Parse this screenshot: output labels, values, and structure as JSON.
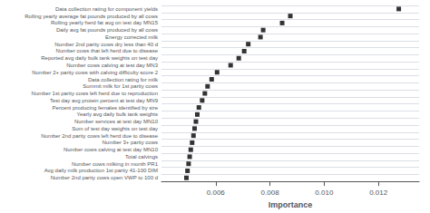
{
  "chart_data": {
    "type": "scatter",
    "orientation": "horizontal",
    "xlabel": "Importance",
    "categories": [
      "Data collection rating for component yields",
      "Rolling yearly average fat pounds produced by all cows",
      "Rolling yearly herd fat avg on test day MN15",
      "Daily avg fat pounds produced by all cows",
      "Energy corrected milk",
      "Number 2nd parity cows dry less than 40 d",
      "Number cows that left herd due to disease",
      "Reported avg daily bulk tank weights on test day",
      "Number cows calving at test day MN3",
      "Number 2+ parity cows with calving difficulty score 2",
      "Data collection rating for milk",
      "Summit milk for 1st parity cows",
      "Number 1st parity cows left herd due to reproduction",
      "Test day avg protein percent at test day MN9",
      "Percent producing females identified by sire",
      "Yearly avg daily bulk tank weights",
      "Number services at test day MN10",
      "Sum of test day weights on test day",
      "Number 2nd parity cows left herd due to disease",
      "Number 3+ parity cows",
      "Number cows calving at test day MN10",
      "Total calvings",
      "Number cows milking in month PR1",
      "Avg daily milk production 1st parity 41-100 DIM",
      "Number 2nd parity cows open VWP to 100 d"
    ],
    "values": [
      0.01275,
      0.00875,
      0.00845,
      0.00775,
      0.00765,
      0.0072,
      0.00705,
      0.00685,
      0.00655,
      0.00605,
      0.00585,
      0.0057,
      0.0056,
      0.0055,
      0.00538,
      0.00532,
      0.00527,
      0.00522,
      0.00518,
      0.00513,
      0.00508,
      0.00504,
      0.005,
      0.00496,
      0.00492
    ],
    "color": "#000000",
    "marker": "square",
    "xlim": [
      0.004,
      0.0135
    ],
    "xticks": [
      0.006,
      0.008,
      {
        "value": 0.01,
        "label": "0.010"
      },
      0.012
    ],
    "grid": true
  }
}
